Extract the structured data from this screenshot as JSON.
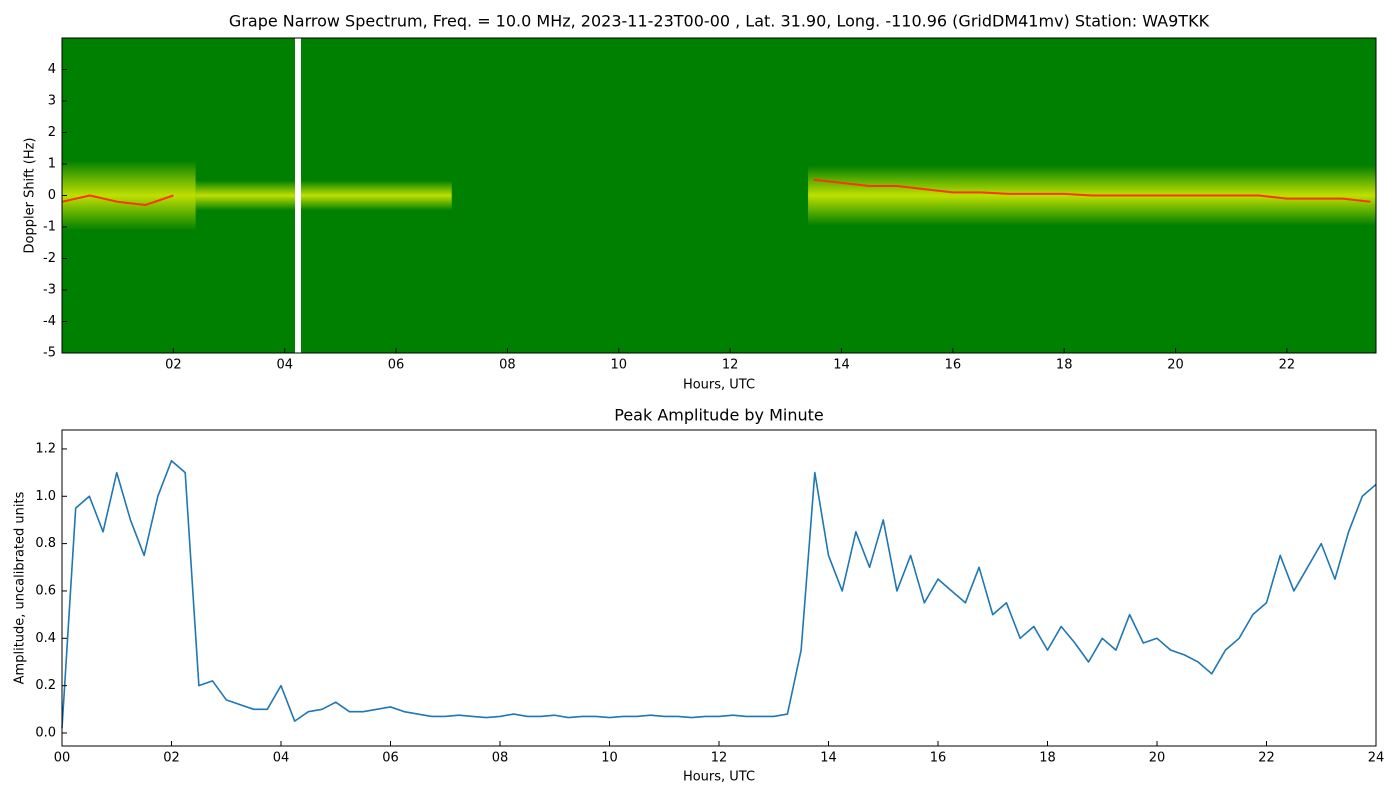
{
  "chart_data": [
    {
      "type": "spectrogram",
      "title": "Grape Narrow Spectrum, Freq. = 10.0 MHz, 2023-11-23T00-00 , Lat.  31.90, Long. -110.96 (GridDM41mv) Station: WA9TKK",
      "x_label": "Hours, UTC",
      "y_label": "Doppler Shift (Hz)",
      "background_color": "#008000",
      "color": "#ff3300",
      "x": [
        0,
        0.5,
        1,
        1.5,
        2,
        2.5,
        3,
        3.5,
        4,
        4.5,
        5,
        5.5,
        6,
        6.5,
        7,
        7.5,
        8,
        8.5,
        9,
        9.5,
        10,
        10.5,
        11,
        11.5,
        12,
        12.5,
        13,
        13.5,
        14,
        14.5,
        15,
        15.5,
        16,
        16.5,
        17,
        17.5,
        18,
        18.5,
        19,
        19.5,
        20,
        20.5,
        21,
        21.5,
        22,
        22.5,
        23,
        23.5
      ],
      "values": [
        -0.2,
        0,
        -0.2,
        -0.3,
        0,
        null,
        null,
        null,
        null,
        null,
        null,
        null,
        null,
        null,
        null,
        null,
        null,
        null,
        null,
        null,
        null,
        null,
        null,
        null,
        null,
        null,
        null,
        0.5,
        0.4,
        0.3,
        0.3,
        0.2,
        0.1,
        0.1,
        0.05,
        0.05,
        0.05,
        0,
        0,
        0,
        0,
        0,
        0,
        0,
        -0.1,
        -0.1,
        -0.1,
        -0.2
      ],
      "xlim": [
        0,
        23.6
      ],
      "ylim": [
        -5,
        5
      ],
      "xticks": [
        {
          "value": 2,
          "label": "02"
        },
        {
          "value": 4,
          "label": "04"
        },
        {
          "value": 6,
          "label": "06"
        },
        {
          "value": 8,
          "label": "08"
        },
        {
          "value": 10,
          "label": "10"
        },
        {
          "value": 12,
          "label": "12"
        },
        {
          "value": 14,
          "label": "14"
        },
        {
          "value": 16,
          "label": "16"
        },
        {
          "value": 18,
          "label": "18"
        },
        {
          "value": 20,
          "label": "20"
        },
        {
          "value": 22,
          "label": "22"
        }
      ],
      "yticks": [
        -5,
        -4,
        -3,
        -2,
        -1,
        0,
        1,
        2,
        3,
        4
      ]
    },
    {
      "type": "line",
      "title": "Peak Amplitude by Minute",
      "x_label": "Hours, UTC",
      "y_label": "Amplitude, uncalibrated units",
      "color": "#1f77b4",
      "x": [
        0,
        0.25,
        0.5,
        0.75,
        1,
        1.25,
        1.5,
        1.75,
        2,
        2.25,
        2.5,
        2.75,
        3,
        3.25,
        3.5,
        3.75,
        4,
        4.25,
        4.5,
        4.75,
        5,
        5.25,
        5.5,
        5.75,
        6,
        6.25,
        6.5,
        6.75,
        7,
        7.25,
        7.5,
        7.75,
        8,
        8.25,
        8.5,
        8.75,
        9,
        9.25,
        9.5,
        9.75,
        10,
        10.25,
        10.5,
        10.75,
        11,
        11.25,
        11.5,
        11.75,
        12,
        12.25,
        12.5,
        12.75,
        13,
        13.25,
        13.5,
        13.75,
        14,
        14.25,
        14.5,
        14.75,
        15,
        15.25,
        15.5,
        15.75,
        16,
        16.25,
        16.5,
        16.75,
        17,
        17.25,
        17.5,
        17.75,
        18,
        18.25,
        18.5,
        18.75,
        19,
        19.25,
        19.5,
        19.75,
        20,
        20.25,
        20.5,
        20.75,
        21,
        21.25,
        21.5,
        21.75,
        22,
        22.25,
        22.5,
        22.75,
        23,
        23.25,
        23.5,
        23.75,
        24
      ],
      "values": [
        0.02,
        0.95,
        1.0,
        0.85,
        1.1,
        0.9,
        0.75,
        1.0,
        1.15,
        1.1,
        0.2,
        0.22,
        0.14,
        0.12,
        0.1,
        0.1,
        0.2,
        0.05,
        0.09,
        0.1,
        0.13,
        0.09,
        0.09,
        0.1,
        0.11,
        0.09,
        0.08,
        0.07,
        0.07,
        0.075,
        0.07,
        0.065,
        0.07,
        0.08,
        0.07,
        0.07,
        0.075,
        0.065,
        0.07,
        0.07,
        0.065,
        0.07,
        0.07,
        0.075,
        0.07,
        0.07,
        0.065,
        0.07,
        0.07,
        0.075,
        0.07,
        0.07,
        0.07,
        0.08,
        0.35,
        1.1,
        0.75,
        0.6,
        0.85,
        0.7,
        0.9,
        0.6,
        0.75,
        0.55,
        0.65,
        0.6,
        0.55,
        0.7,
        0.5,
        0.55,
        0.4,
        0.45,
        0.35,
        0.45,
        0.38,
        0.3,
        0.4,
        0.35,
        0.5,
        0.38,
        0.4,
        0.35,
        0.33,
        0.3,
        0.25,
        0.35,
        0.4,
        0.5,
        0.55,
        0.75,
        0.6,
        0.7,
        0.8,
        0.65,
        0.85,
        1.0,
        1.05
      ],
      "xlim": [
        0,
        24
      ],
      "ylim": [
        -0.055,
        1.28
      ],
      "xticks": [
        {
          "value": 0,
          "label": "00"
        },
        {
          "value": 2,
          "label": "02"
        },
        {
          "value": 4,
          "label": "04"
        },
        {
          "value": 6,
          "label": "06"
        },
        {
          "value": 8,
          "label": "08"
        },
        {
          "value": 10,
          "label": "10"
        },
        {
          "value": 12,
          "label": "12"
        },
        {
          "value": 14,
          "label": "14"
        },
        {
          "value": 16,
          "label": "16"
        },
        {
          "value": 18,
          "label": "18"
        },
        {
          "value": 20,
          "label": "20"
        },
        {
          "value": 22,
          "label": "22"
        },
        {
          "value": 24,
          "label": "24"
        }
      ],
      "yticks": [
        {
          "value": 0,
          "label": "0.0"
        },
        0.2,
        0.4,
        0.6,
        0.8,
        {
          "value": 1,
          "label": "1.0"
        },
        1.2
      ]
    }
  ]
}
